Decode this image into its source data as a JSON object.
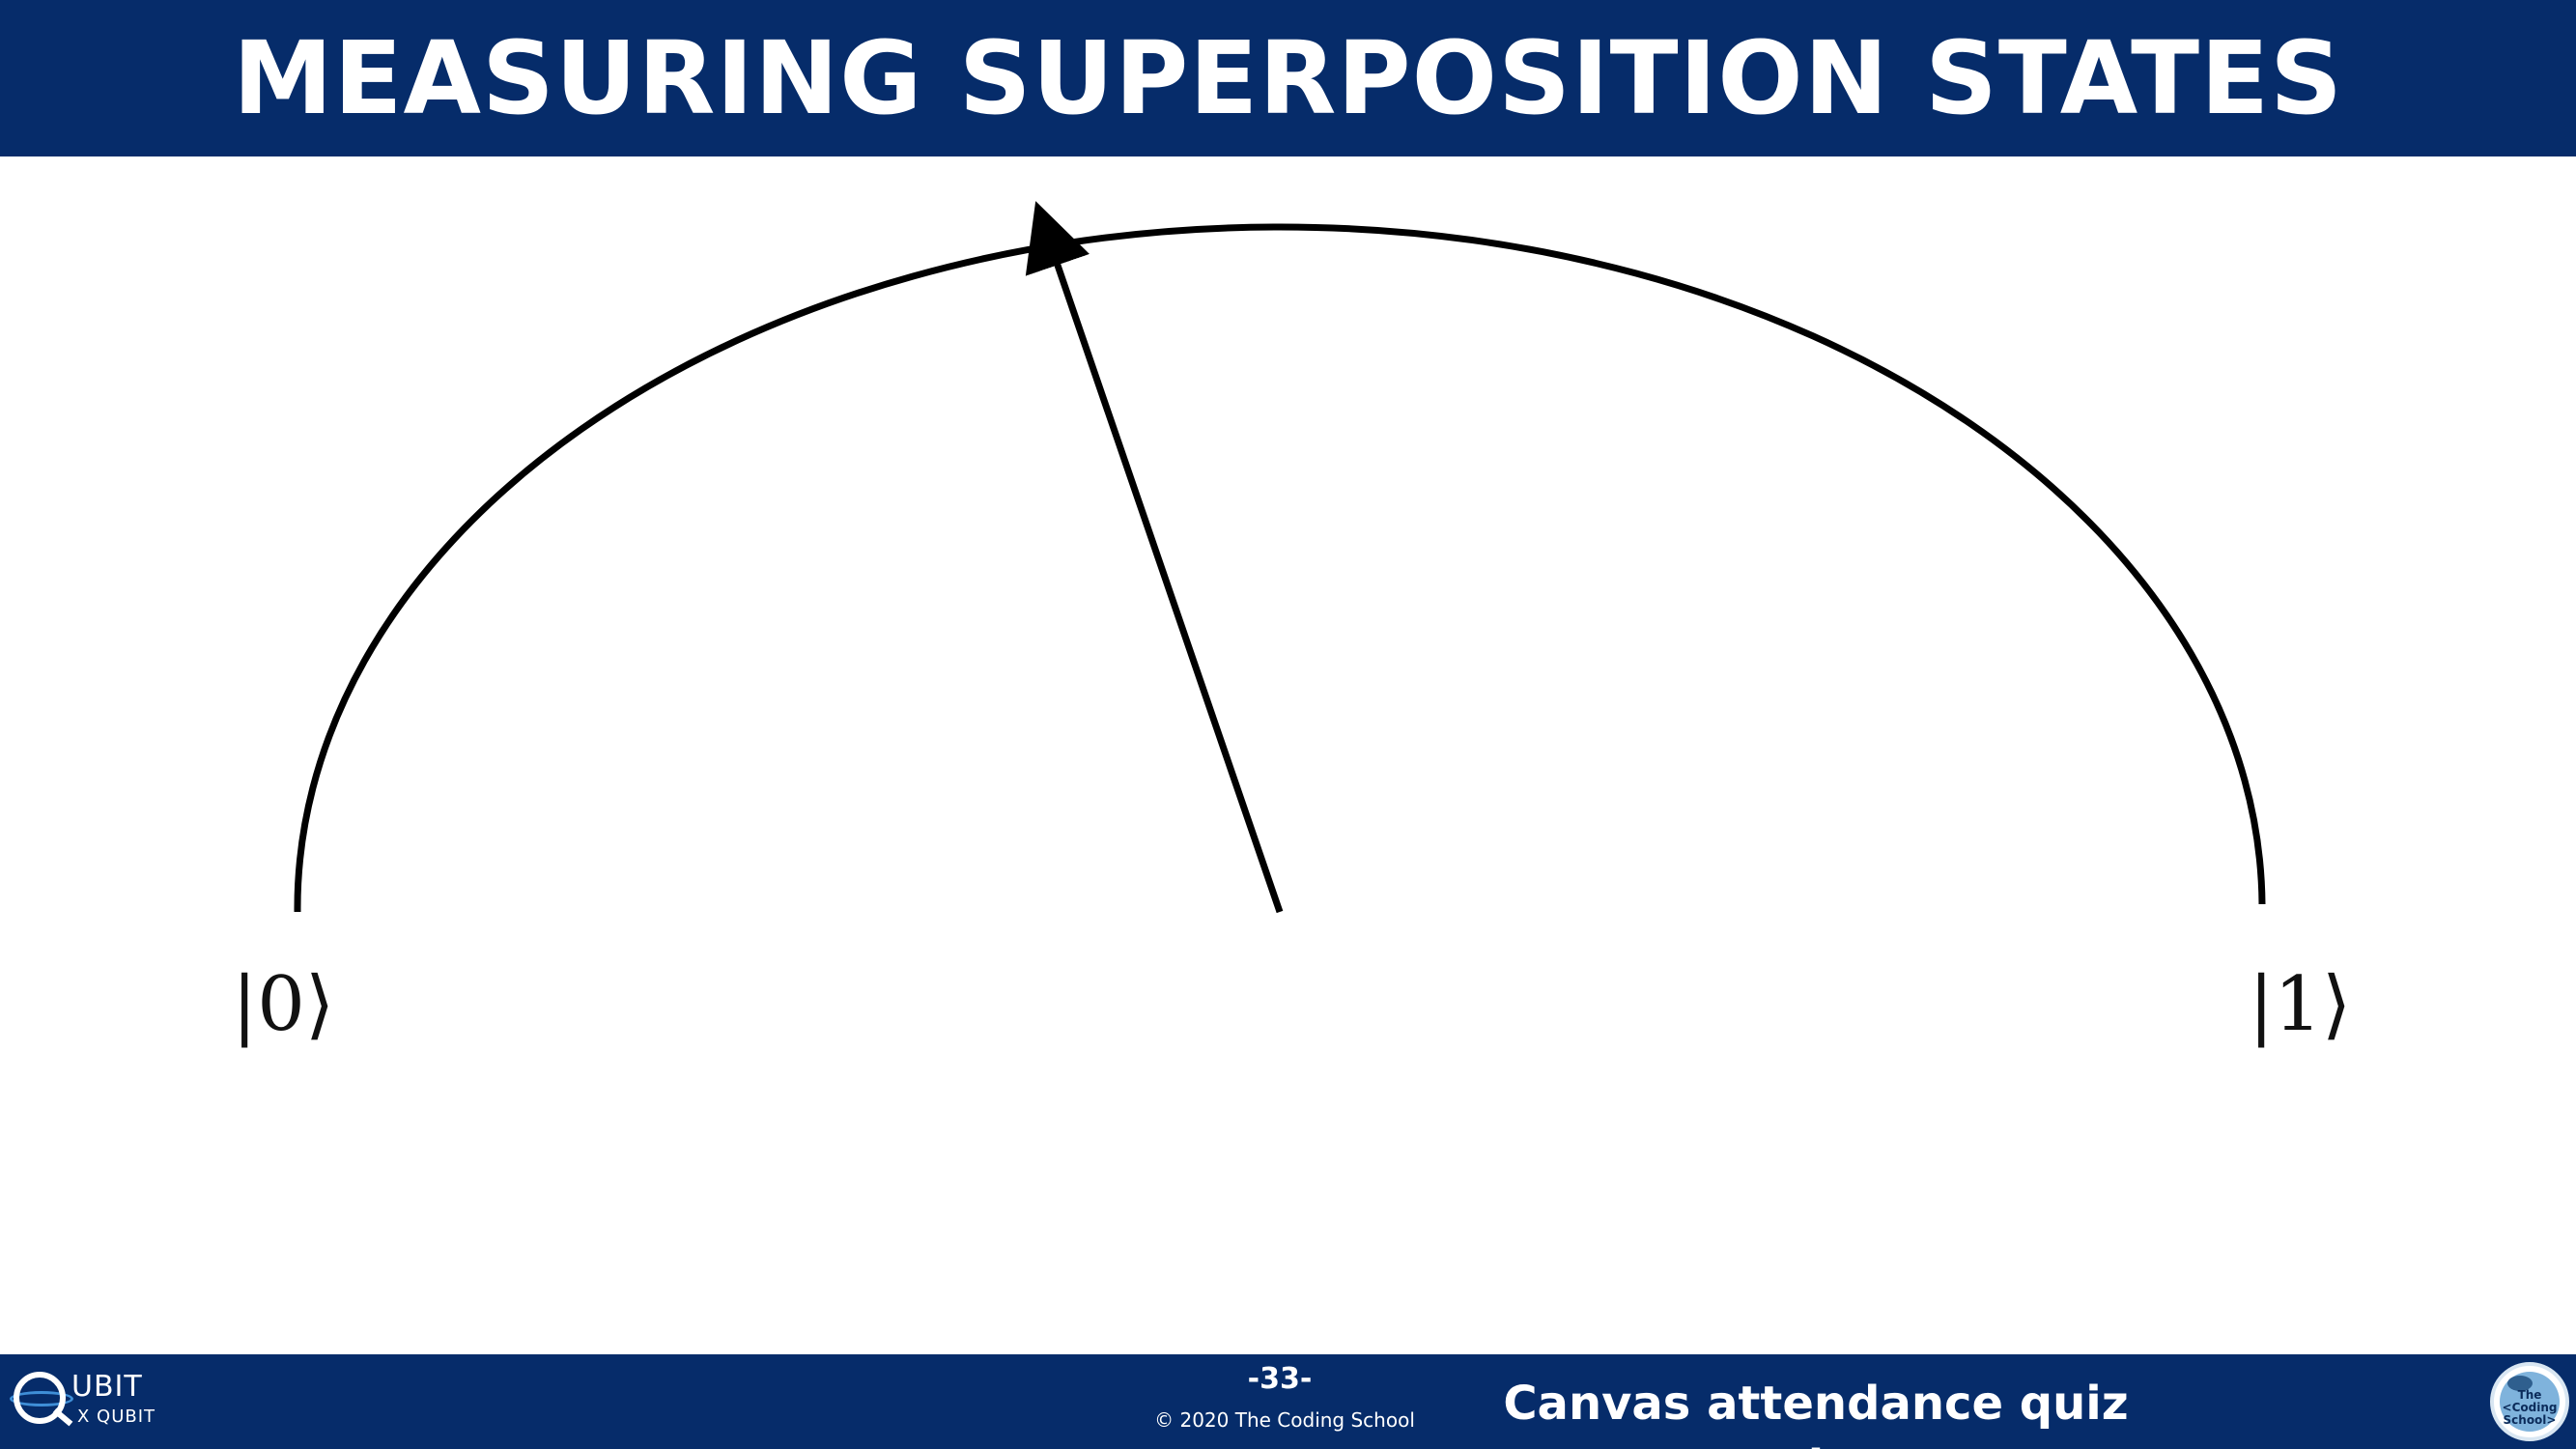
{
  "slide": {
    "title": "MEASURING SUPERPOSITION STATES"
  },
  "diagram": {
    "label_zero": "|0⟩",
    "label_one": "|1⟩",
    "stroke_color": "#000000",
    "arrow_angle_deg_from_vertical": 20
  },
  "footer": {
    "logo_text": "UBIT",
    "logo_subtext": "X QUBIT",
    "page_number": "-33-",
    "copyright": "© 2020 The Coding School",
    "notice": "Canvas attendance quiz",
    "notice_line2": "l",
    "school_logo_text": "The <Coding School>"
  },
  "colors": {
    "brand_navy": "#062c6a",
    "background": "#ffffff",
    "accent_blue": "#3f8fd8"
  },
  "icons": {
    "left_logo": "qubit-by-qubit-logo-icon",
    "right_logo": "coding-school-globe-icon"
  }
}
